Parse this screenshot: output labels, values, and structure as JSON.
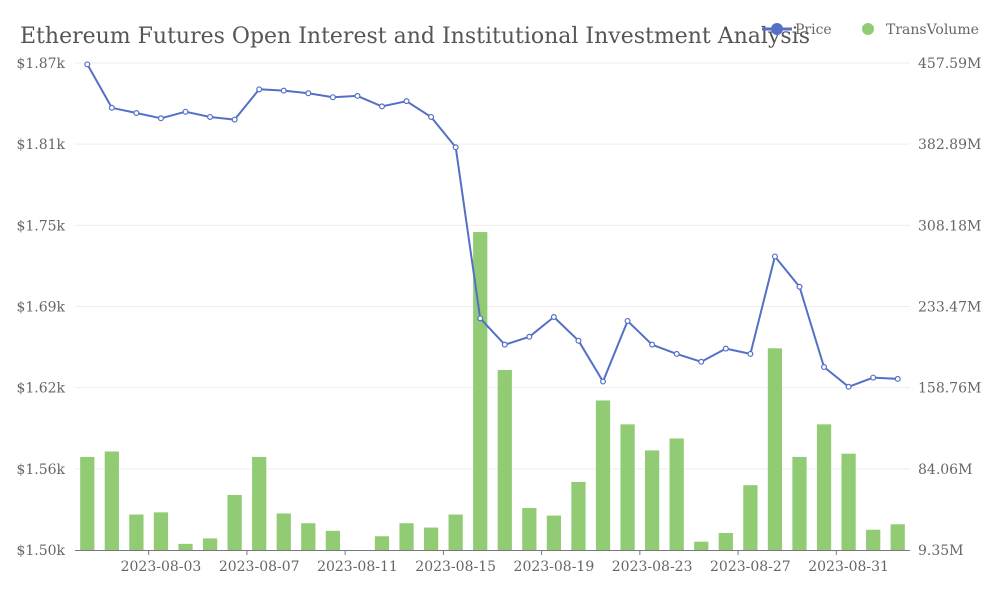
{
  "chart_data": {
    "type": "bar+line",
    "title": "Ethereum Futures Open Interest and Institutional Investment Analysis",
    "legend": {
      "placement": "top-right",
      "items": [
        {
          "name": "Price",
          "color": "#5470c6",
          "shape": "line-circle"
        },
        {
          "name": "TransVolume",
          "color": "#91cc75",
          "shape": "circle"
        }
      ]
    },
    "grid": true,
    "y_left": {
      "min": 1500,
      "max": 1870,
      "tick_values": [
        1500,
        1561.67,
        1623.33,
        1685,
        1746.67,
        1808.33,
        1870
      ],
      "tick_labels": [
        "$1.50k",
        "$1.56k",
        "$1.62k",
        "$1.69k",
        "$1.75k",
        "$1.81k",
        "$1.87k"
      ]
    },
    "y_right": {
      "min": 9.35,
      "max": 457.59,
      "tick_values": [
        9.35,
        84.06,
        158.76,
        233.47,
        308.18,
        382.89,
        457.59
      ],
      "tick_labels": [
        "9.35M",
        "84.06M",
        "158.76M",
        "233.47M",
        "308.18M",
        "382.89M",
        "457.59M"
      ]
    },
    "x_tick_labels": [
      {
        "index": 3,
        "label": "2023-08-03"
      },
      {
        "index": 7,
        "label": "2023-08-07"
      },
      {
        "index": 11,
        "label": "2023-08-11"
      },
      {
        "index": 15,
        "label": "2023-08-15"
      },
      {
        "index": 19,
        "label": "2023-08-19"
      },
      {
        "index": 23,
        "label": "2023-08-23"
      },
      {
        "index": 27,
        "label": "2023-08-27"
      },
      {
        "index": 31,
        "label": "2023-08-31"
      }
    ],
    "categories": [
      "2023-07-31",
      "2023-08-01",
      "2023-08-02",
      "2023-08-03",
      "2023-08-04",
      "2023-08-05",
      "2023-08-06",
      "2023-08-07",
      "2023-08-08",
      "2023-08-09",
      "2023-08-10",
      "2023-08-11",
      "2023-08-12",
      "2023-08-13",
      "2023-08-14",
      "2023-08-15",
      "2023-08-16",
      "2023-08-17",
      "2023-08-18",
      "2023-08-19",
      "2023-08-20",
      "2023-08-21",
      "2023-08-22",
      "2023-08-23",
      "2023-08-24",
      "2023-08-25",
      "2023-08-26",
      "2023-08-27",
      "2023-08-28",
      "2023-08-29",
      "2023-08-30",
      "2023-08-31",
      "2023-09-01",
      "2023-09-02"
    ],
    "series": [
      {
        "name": "Price",
        "type": "line",
        "axis": "left",
        "color": "#5470c6",
        "values": [
          1869,
          1836,
          1832,
          1828,
          1833,
          1829,
          1827,
          1850,
          1849,
          1847,
          1844,
          1845,
          1837,
          1841,
          1829,
          1806,
          1676,
          1656,
          1662,
          1677,
          1659,
          1628,
          1674,
          1656,
          1649,
          1643,
          1653,
          1649,
          1723,
          1700,
          1639,
          1624,
          1631,
          1630
        ]
      },
      {
        "name": "TransVolume",
        "type": "bar",
        "axis": "right",
        "color": "#91cc75",
        "values": [
          95,
          100,
          42,
          44,
          15,
          20,
          60,
          95,
          43,
          34,
          27,
          9,
          22,
          34,
          30,
          42,
          302,
          175,
          48,
          41,
          72,
          147,
          125,
          101,
          112,
          17,
          25,
          69,
          195,
          95,
          125,
          98,
          28,
          33
        ]
      }
    ]
  }
}
